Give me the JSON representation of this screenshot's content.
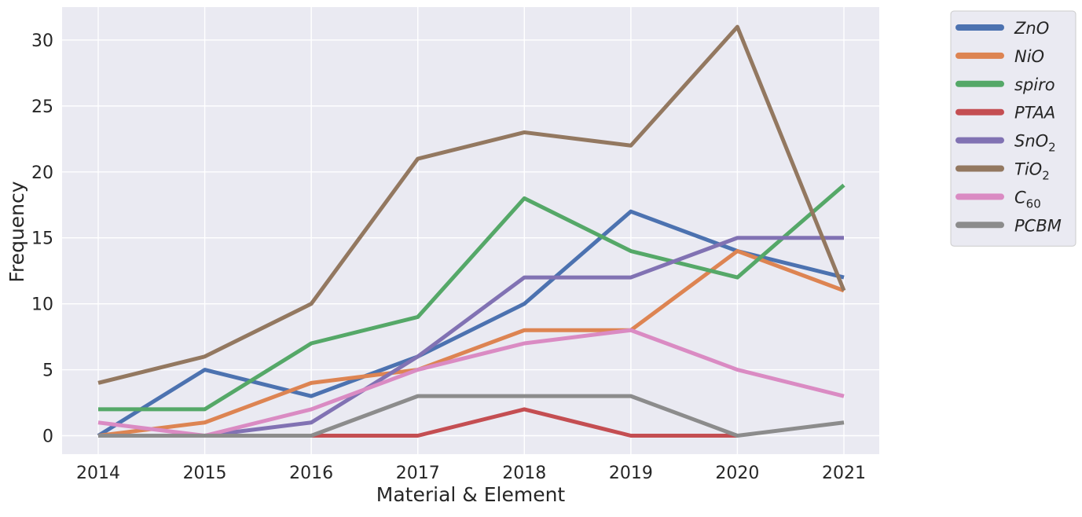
{
  "chart_data": {
    "type": "line",
    "title": "",
    "xlabel": "Material & Element",
    "ylabel": "Frequency",
    "categories": [
      "2014",
      "2015",
      "2016",
      "2017",
      "2018",
      "2019",
      "2020",
      "2021"
    ],
    "ylim": [
      -1.4,
      32.5
    ],
    "yticks": [
      0,
      5,
      10,
      15,
      20,
      25,
      30
    ],
    "ytick_labels": [
      "0",
      "5",
      "10",
      "15",
      "20",
      "25",
      "30"
    ],
    "grid": true,
    "legend_position": "outside-right",
    "series": [
      {
        "name": "ZnO",
        "base": "ZnO",
        "sub": "",
        "color": "#4c72b0",
        "values": [
          0,
          5,
          3,
          6,
          10,
          17,
          14,
          12
        ]
      },
      {
        "name": "NiO",
        "base": "NiO",
        "sub": "",
        "color": "#dd8452",
        "values": [
          0,
          1,
          4,
          5,
          8,
          8,
          14,
          11
        ]
      },
      {
        "name": "spiro",
        "base": "spiro",
        "sub": "",
        "color": "#55a868",
        "values": [
          2,
          2,
          7,
          9,
          18,
          14,
          12,
          19
        ]
      },
      {
        "name": "PTAA",
        "base": "PTAA",
        "sub": "",
        "color": "#c44e52",
        "values": [
          0,
          0,
          0,
          0,
          2,
          0,
          0,
          null
        ]
      },
      {
        "name": "SnO2",
        "base": "SnO",
        "sub": "2",
        "color": "#8172b3",
        "values": [
          0,
          0,
          1,
          6,
          12,
          12,
          15,
          15
        ]
      },
      {
        "name": "TiO2",
        "base": "TiO",
        "sub": "2",
        "color": "#937860",
        "values": [
          4,
          6,
          10,
          21,
          23,
          22,
          31,
          11
        ]
      },
      {
        "name": "C60",
        "base": "C",
        "sub": "60",
        "color": "#da8bc3",
        "values": [
          1,
          0,
          2,
          5,
          7,
          8,
          5,
          3
        ]
      },
      {
        "name": "PCBM",
        "base": "PCBM",
        "sub": "",
        "color": "#8c8c8c",
        "values": [
          0,
          0,
          0,
          3,
          3,
          3,
          0,
          1
        ]
      }
    ]
  }
}
